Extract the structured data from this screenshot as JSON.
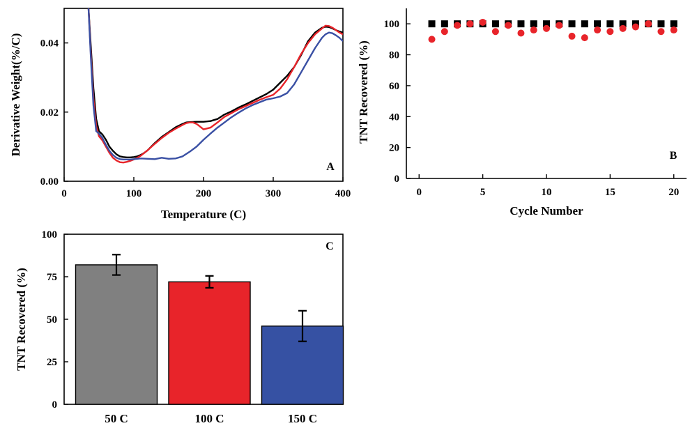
{
  "chart_data": [
    {
      "panel": "A",
      "type": "line",
      "title": "",
      "xlabel": "Temperature (C)",
      "ylabel": "Derivative Weight(%/C)",
      "xlim": [
        0,
        400
      ],
      "ylim": [
        0,
        0.05
      ],
      "xticks": [
        0,
        100,
        200,
        300,
        400
      ],
      "yticks": [
        0.0,
        0.02,
        0.04
      ],
      "ytick_labels": [
        "0.00",
        "0.02",
        "0.04"
      ],
      "series": [
        {
          "name": "black",
          "color": "#000000",
          "x": [
            35,
            38,
            42,
            46,
            50,
            55,
            60,
            65,
            70,
            75,
            80,
            85,
            90,
            95,
            100,
            105,
            110,
            115,
            120,
            130,
            140,
            150,
            160,
            170,
            175,
            180,
            190,
            200,
            210,
            220,
            230,
            240,
            250,
            260,
            270,
            280,
            290,
            300,
            310,
            320,
            330,
            340,
            350,
            360,
            370,
            375,
            380,
            385,
            390,
            395,
            400
          ],
          "y": [
            0.05,
            0.04,
            0.027,
            0.018,
            0.0145,
            0.0135,
            0.012,
            0.01,
            0.0088,
            0.0078,
            0.0072,
            0.007,
            0.0069,
            0.0069,
            0.007,
            0.0072,
            0.0076,
            0.0082,
            0.009,
            0.011,
            0.0128,
            0.0142,
            0.0156,
            0.0166,
            0.017,
            0.0171,
            0.0172,
            0.0172,
            0.0174,
            0.018,
            0.0193,
            0.0202,
            0.0213,
            0.0222,
            0.0232,
            0.0242,
            0.0252,
            0.0265,
            0.0285,
            0.0305,
            0.033,
            0.0365,
            0.0405,
            0.043,
            0.0444,
            0.0447,
            0.0446,
            0.0442,
            0.0437,
            0.0433,
            0.043
          ]
        },
        {
          "name": "red",
          "color": "#e8242a",
          "x": [
            35,
            38,
            42,
            46,
            50,
            55,
            60,
            65,
            70,
            75,
            80,
            85,
            90,
            95,
            100,
            105,
            110,
            115,
            120,
            130,
            140,
            150,
            160,
            170,
            175,
            180,
            185,
            190,
            195,
            200,
            210,
            220,
            230,
            240,
            250,
            260,
            270,
            280,
            290,
            300,
            310,
            320,
            330,
            340,
            350,
            360,
            370,
            375,
            380,
            385,
            390,
            395,
            400
          ],
          "y": [
            0.05,
            0.038,
            0.024,
            0.016,
            0.013,
            0.0118,
            0.01,
            0.0082,
            0.0068,
            0.006,
            0.0055,
            0.0054,
            0.0056,
            0.0059,
            0.0063,
            0.0068,
            0.0074,
            0.0082,
            0.009,
            0.0108,
            0.0125,
            0.014,
            0.0152,
            0.0163,
            0.0168,
            0.017,
            0.017,
            0.0166,
            0.0158,
            0.015,
            0.0155,
            0.017,
            0.0186,
            0.0197,
            0.0208,
            0.0217,
            0.0226,
            0.0235,
            0.0243,
            0.025,
            0.0268,
            0.0295,
            0.033,
            0.0368,
            0.04,
            0.0425,
            0.0442,
            0.045,
            0.0449,
            0.0444,
            0.0437,
            0.043,
            0.0425
          ]
        },
        {
          "name": "blue",
          "color": "#3a50a4",
          "x": [
            35,
            38,
            42,
            46,
            50,
            55,
            60,
            65,
            70,
            75,
            80,
            85,
            90,
            95,
            100,
            110,
            120,
            130,
            140,
            150,
            160,
            170,
            180,
            190,
            200,
            210,
            220,
            230,
            240,
            250,
            260,
            270,
            280,
            290,
            300,
            310,
            320,
            330,
            340,
            350,
            360,
            370,
            375,
            380,
            385,
            390,
            395,
            400
          ],
          "y": [
            0.05,
            0.037,
            0.022,
            0.0145,
            0.0138,
            0.0125,
            0.0105,
            0.0088,
            0.0076,
            0.0068,
            0.0064,
            0.0063,
            0.0063,
            0.0063,
            0.0064,
            0.0066,
            0.0065,
            0.0064,
            0.0068,
            0.0065,
            0.0066,
            0.0072,
            0.0085,
            0.01,
            0.012,
            0.0138,
            0.0155,
            0.017,
            0.0185,
            0.0198,
            0.021,
            0.022,
            0.0228,
            0.0236,
            0.024,
            0.0245,
            0.0255,
            0.028,
            0.0315,
            0.035,
            0.0385,
            0.0415,
            0.0425,
            0.043,
            0.0428,
            0.0422,
            0.0415,
            0.0405
          ]
        }
      ]
    },
    {
      "panel": "B",
      "type": "scatter",
      "title": "",
      "xlabel": "Cycle Number",
      "ylabel": "TNT Recovered (%)",
      "xlim": [
        -1,
        21
      ],
      "ylim": [
        0,
        110
      ],
      "xticks": [
        0,
        5,
        10,
        15,
        20
      ],
      "yticks": [
        0,
        20,
        40,
        60,
        80,
        100
      ],
      "series": [
        {
          "name": "black squares",
          "color": "#000000",
          "marker": "square",
          "x": [
            1,
            2,
            3,
            4,
            5,
            6,
            7,
            8,
            9,
            10,
            11,
            12,
            13,
            14,
            15,
            16,
            17,
            18,
            19,
            20
          ],
          "y": [
            100,
            100,
            100,
            100,
            100,
            100,
            100,
            100,
            100,
            100,
            100,
            100,
            100,
            100,
            100,
            100,
            100,
            100,
            100,
            100
          ]
        },
        {
          "name": "red circles",
          "color": "#e8242a",
          "marker": "circle",
          "x": [
            1,
            2,
            3,
            4,
            5,
            6,
            7,
            8,
            9,
            10,
            11,
            12,
            13,
            14,
            15,
            16,
            17,
            18,
            19,
            20
          ],
          "y": [
            90,
            95,
            99,
            100,
            101,
            95,
            99,
            94,
            96,
            97,
            99,
            92,
            91,
            96,
            95,
            97,
            98,
            100,
            95,
            96
          ]
        }
      ]
    },
    {
      "panel": "C",
      "type": "bar",
      "title": "",
      "xlabel": "",
      "ylabel": "TNT Recovered (%)",
      "ylim": [
        0,
        100
      ],
      "yticks": [
        0,
        25,
        50,
        75,
        100
      ],
      "categories": [
        "50 C",
        "100 C",
        "150 C"
      ],
      "values": [
        82,
        72,
        46
      ],
      "errors": [
        6,
        3.5,
        9
      ],
      "colors": [
        "#808080",
        "#e8242a",
        "#3651a3"
      ]
    }
  ]
}
